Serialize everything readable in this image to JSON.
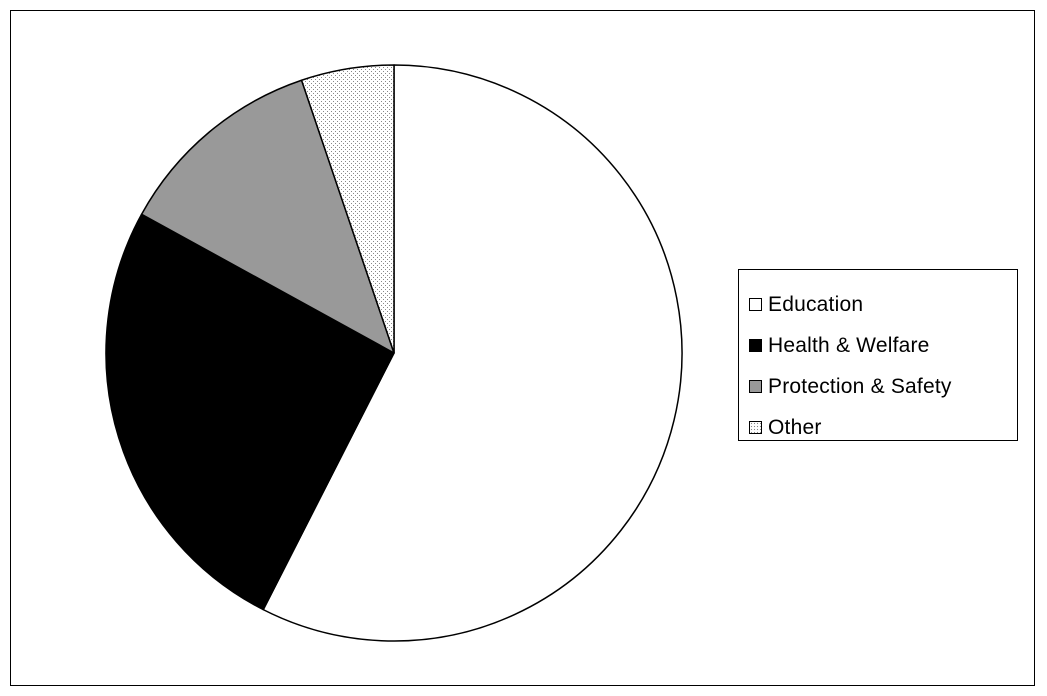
{
  "chart_data": {
    "type": "pie",
    "title": "",
    "categories": [
      "Education",
      "Health & Welfare",
      "Protection & Safety",
      "Other"
    ],
    "values": [
      57.5,
      25.5,
      11.8,
      5.2
    ],
    "colors": [
      "#ffffff",
      "#000000",
      "#999999",
      "dotted-light-gray"
    ],
    "start_angle": "12 o'clock",
    "direction": "clockwise",
    "legend_position": "right"
  },
  "legend": {
    "items": [
      {
        "label": "Education",
        "color": "#ffffff"
      },
      {
        "label": "Health & Welfare",
        "color": "#000000"
      },
      {
        "label": "Protection & Safety",
        "color": "#999999"
      },
      {
        "label": "Other",
        "color": "dotted-light-gray"
      }
    ]
  }
}
